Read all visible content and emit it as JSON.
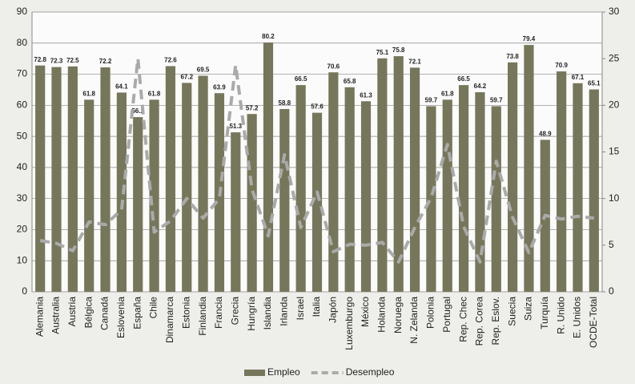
{
  "chart_data": {
    "type": "bar",
    "categories": [
      "Alemania",
      "Australia",
      "Austria",
      "Bélgica",
      "Canadá",
      "Eslovenia",
      "España",
      "Chile",
      "Dinamarca",
      "Estonia",
      "Finlandia",
      "Francia",
      "Grecia",
      "Hungría",
      "Islandia",
      "Irlanda",
      "Israel",
      "Italia",
      "Japón",
      "Luxemburgo",
      "México",
      "Holanda",
      "Noruega",
      "N. Zelanda",
      "Polonia",
      "Portugal",
      "Rep. Chec",
      "Rep. Corea",
      "Rep. Eslov.",
      "Suecia",
      "Suiza",
      "Turquía",
      "R. Unido",
      "E. Unidos",
      "OCDE-Total"
    ],
    "series": [
      {
        "name": "Empleo",
        "type": "bar",
        "color": "#76775a",
        "data_labels": true,
        "values": [
          72.8,
          72.3,
          72.5,
          61.8,
          72.2,
          64.1,
          56.2,
          61.8,
          72.6,
          67.2,
          69.5,
          63.9,
          51.3,
          57.2,
          80.2,
          58.8,
          66.5,
          57.6,
          70.6,
          65.8,
          61.3,
          75.1,
          75.8,
          72.1,
          59.7,
          61.8,
          66.5,
          64.2,
          59.7,
          73.8,
          79.4,
          48.9,
          70.9,
          67.1,
          65.1
        ]
      },
      {
        "name": "Desempleo",
        "type": "line",
        "axis": "y2",
        "color": "#aaaaaa",
        "dashed": true,
        "values": [
          5.5,
          5.2,
          4.4,
          7.5,
          7.2,
          8.8,
          25,
          6.4,
          7.6,
          10,
          7.9,
          10,
          24.3,
          11,
          6,
          14.7,
          6.9,
          10.7,
          4.3,
          5.1,
          5,
          5.3,
          3.2,
          6.9,
          10.1,
          15.8,
          7,
          3.2,
          14,
          8,
          4.2,
          8.2,
          7.8,
          8.1,
          7.9
        ]
      }
    ],
    "ylim": [
      0,
      90
    ],
    "yticks": [
      0,
      10,
      20,
      30,
      40,
      50,
      60,
      70,
      80,
      90
    ],
    "y2lim": [
      0,
      30
    ],
    "y2ticks": [
      0,
      5,
      10,
      15,
      20,
      25,
      30
    ],
    "grid": true,
    "legend": "bottom"
  }
}
